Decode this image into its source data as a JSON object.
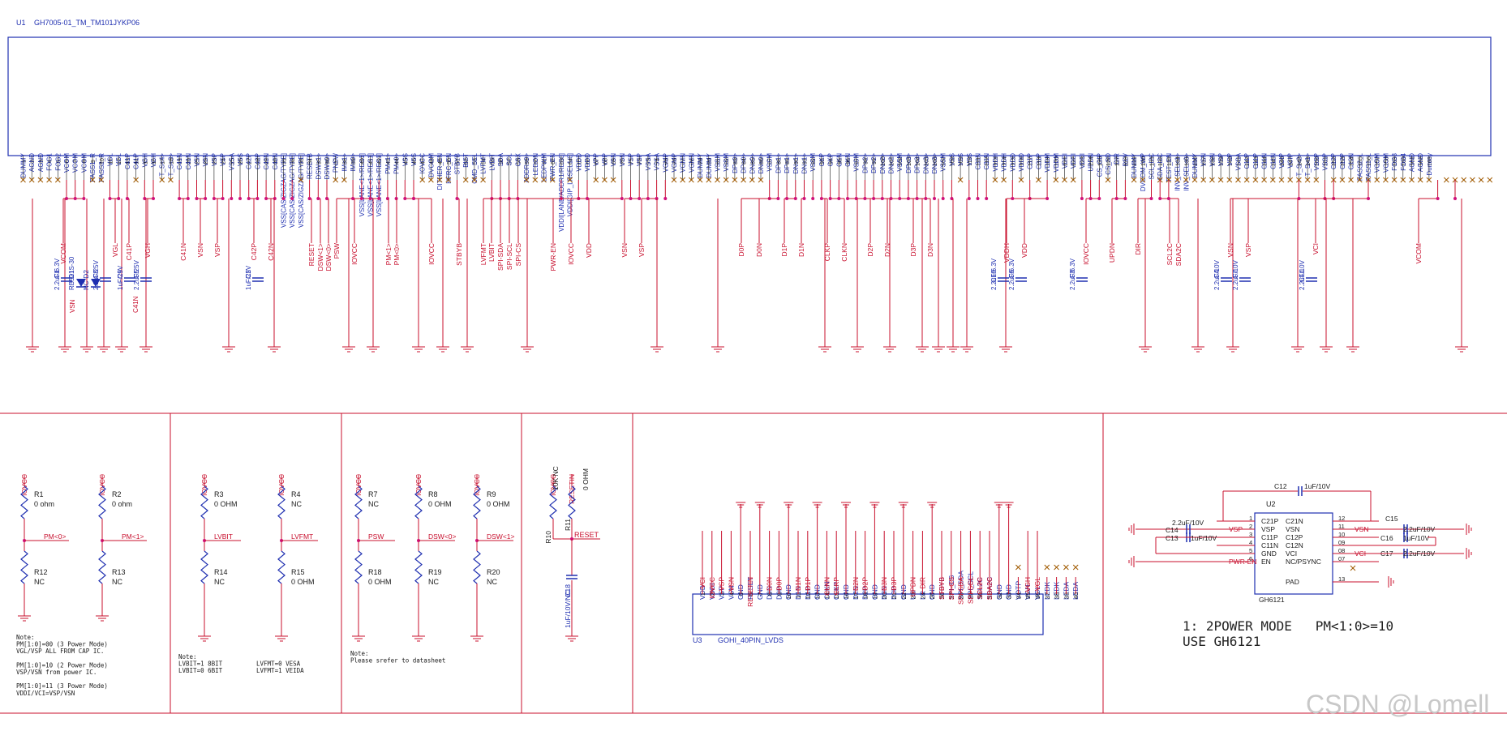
{
  "colors": {
    "wire": "#c8102e",
    "part": "#1f2fb0",
    "net": "#c8102e",
    "text": "#1a1a1a",
    "pin_x": "#a05a00",
    "watermark": "#c8c8c8",
    "grid": "#c8102e"
  },
  "u1": {
    "designator": "U1",
    "part": "GH7005-01_TM_TM101JYKP06",
    "pins": [
      "DUMMY",
      "AGND",
      "AGND",
      "FOG1",
      "FOG2",
      "VCOM",
      "VCOM",
      "VCOM",
      "PASS1_R",
      "PASS2_R",
      "VGL",
      "VGL",
      "C41P",
      "C41P",
      "VGH",
      "VGH",
      "T_S<4>",
      "T_S<3>",
      "C41N",
      "C41N",
      "VSN",
      "VSN",
      "VSP",
      "VSP",
      "VSSA",
      "VSS",
      "C42P",
      "C42P",
      "C42N",
      "C42N",
      "VSS[CAS/ZIGZAG/TYPE]",
      "VSS[CAS/ZIGZAG/TYPE]",
      "VSS[CAS/ZIGZAG/TYPE]",
      "RESETB",
      "DSW<1>",
      "DSW<0>",
      "PNSW",
      "IM<1>",
      "IM<0>",
      "VSS[LANE<1>/RES1]",
      "VSS[LANE<1>/RES1]",
      "VSS[LANE<1>/RES1]",
      "PM<1>",
      "PM<0>",
      "VSS",
      "VSS",
      "IOVCC",
      "DVCOM",
      "DITHER_EN",
      "HFRC_EN",
      "STBYB",
      "BIST",
      "CMD_SEL",
      "LVFMT",
      "LVBIT",
      "SDA",
      "SCL",
      "CSX",
      "ADDR<0>",
      "LEDON",
      "LEDPWM",
      "PWR_EN",
      "VDDI[LANE/ADDR1/RES0]",
      "VDDI[GIP_LRSEL1/0]",
      "VDDD",
      "VDDD",
      "VPP",
      "VPP",
      "VSN",
      "VSN",
      "VSP",
      "VSP",
      "VSSA",
      "VSSA",
      "VGMP",
      "VGMP",
      "VGMN",
      "VGMN",
      "DUMMY",
      "DUMMY",
      "VSSM",
      "VSSM",
      "DP<0>",
      "DP<0>",
      "DN<0>",
      "DN<0>",
      "VSSM",
      "DP<1>",
      "DP<1>",
      "DN<1>",
      "DN<1>",
      "VSSM",
      "CKP",
      "CKP",
      "CKN",
      "CKN",
      "VSSM",
      "DP<2>",
      "DP<2>",
      "DN<2>",
      "DN<2>",
      "VSSM",
      "DP<3>",
      "DP<3>",
      "DN<3>",
      "DN<3>",
      "VSSM",
      "VSS",
      "VSS",
      "VSS",
      "C31N",
      "C31N",
      "VDDH",
      "VDDH",
      "VDDD",
      "VDDD",
      "C31P",
      "C31P",
      "VDDM",
      "VDDM",
      "VDDI",
      "VDDI",
      "VDDI",
      "UPDN",
      "CS_GIP",
      "CS_SD",
      "DIR",
      "REV",
      "DUMMY",
      "DVCOM_WP",
      "SCL_I2C",
      "SDA_I2C",
      "TEST_EN",
      "INV_SEL<1>",
      "INV_SEL<0>",
      "DUMMY",
      "VSN",
      "VSN",
      "VSP",
      "VSP",
      "VSSA",
      "C11P",
      "C11P",
      "C11N",
      "C11N",
      "VCIP",
      "VCIP",
      "T_S<2>",
      "T_S<1>",
      "VSSP",
      "VSSP",
      "C12P",
      "C12P",
      "C12N",
      "PASS2_L",
      "PASS1_L",
      "VCOM",
      "VCOM",
      "FOG3",
      "FOG4",
      "AGND",
      "AGND",
      "Dummy"
    ],
    "nets": [
      "VCOM",
      "VGL",
      "C41P",
      "VGH",
      "C41N",
      "VSN",
      "VSP",
      "C42P",
      "C42N",
      "RESET",
      "DSW<1>",
      "DSW<0>",
      "PSW",
      "IOVCC",
      "PM<1>",
      "PM<0>",
      "IOVCC",
      "STBYB",
      "LVFMT",
      "LVBIT",
      "SPI-SDA",
      "SPI-SCL",
      "SPI-CS",
      "PWR-EN",
      "IOVCC",
      "VDD",
      "VSN",
      "VSP",
      "D0P",
      "D0N",
      "D1P",
      "D1N",
      "CLKP",
      "CLKN",
      "D2P",
      "D2N",
      "D3P",
      "D3N",
      "VDDH",
      "VDD",
      "IOVCC",
      "UPDN",
      "DIR",
      "SCL2C",
      "SDA2C",
      "VSN",
      "VSP",
      "VCI",
      "VCOM"
    ],
    "caps": [
      {
        "ref": "C1",
        "value": "2.2uF/6.3V",
        "net": "VSN"
      },
      {
        "ref": "D1",
        "value": "RB521S-30"
      },
      {
        "ref": "D2",
        "value": "NC"
      },
      {
        "ref": "C8",
        "value": "2.2uF/25V"
      },
      {
        "ref": "C9",
        "value": "1uF/25V",
        "net": "C41N"
      },
      {
        "ref": "C5",
        "value": "2.2uF/25V"
      },
      {
        "ref": "C2",
        "value": "1uF/25V"
      },
      {
        "ref": "C10",
        "value": "2.2uF/6.3V"
      },
      {
        "ref": "C6",
        "value": "2.2uF/6.3V"
      },
      {
        "ref": "C3",
        "value": "2.2uF/6.3V"
      },
      {
        "ref": "C4",
        "value": "2.2uF/10V"
      },
      {
        "ref": "C7",
        "value": "2.2uF/10V"
      },
      {
        "ref": "C11",
        "value": "2.2uF/10V"
      }
    ]
  },
  "resistors": {
    "b1": [
      {
        "ref": "R1",
        "value": "0 ohm",
        "top": "IOVCC",
        "mid": "PM<0>"
      },
      {
        "ref": "R2",
        "value": "0 ohm",
        "top": "IOVCC",
        "mid": "PM<1>"
      },
      {
        "ref": "R12",
        "value": "NC"
      },
      {
        "ref": "R13",
        "value": "NC"
      }
    ],
    "b2": [
      {
        "ref": "R3",
        "value": "0 OHM",
        "top": "IOVCC",
        "mid": "LVBIT"
      },
      {
        "ref": "R4",
        "value": "NC",
        "top": "IOVCC",
        "mid": "LVFMT"
      },
      {
        "ref": "R14",
        "value": "NC"
      },
      {
        "ref": "R15",
        "value": "0 OHM"
      }
    ],
    "b3": [
      {
        "ref": "R7",
        "value": "NC",
        "top": "IOVCC",
        "mid": "PSW"
      },
      {
        "ref": "R8",
        "value": "0 OHM",
        "top": "IOVCC",
        "mid": "DSW<0>"
      },
      {
        "ref": "R9",
        "value": "0 OHM",
        "top": "IOVCC",
        "mid": "DSW<1>"
      },
      {
        "ref": "R18",
        "value": "0 OHM"
      },
      {
        "ref": "R19",
        "value": "NC"
      },
      {
        "ref": "R20",
        "value": "NC"
      }
    ],
    "b4": {
      "r10": "R10",
      "r10_value": "10K NC",
      "r11": "R11",
      "r11_value": "0 OHM",
      "top1": "IOVCC",
      "top2": "RESETIN",
      "mid": "RESET",
      "cap_ref": "C18",
      "cap_value": "1uF/10V/NC"
    }
  },
  "notes": {
    "b1": [
      "Note:",
      "PM[1:0]=00 (3 Power Mode)",
      " VGL/VSP  ALL FROM CAP IC.",
      "",
      "PM[1:0]=10 (2 Power Mode)",
      "VSP/VSN  from power IC.",
      "",
      "PM[1:0]=11 (3 Power Mode)",
      "VDDI/VCI=VSP/VSN"
    ],
    "b2a": [
      "Note:",
      "LVBIT=1  8BIT",
      "LVBIT=0  6BIT"
    ],
    "b2b": [
      "LVFMT=0  VESA",
      "LVFMT=1  VEIDA"
    ],
    "b3": [
      "Note:",
      "Please srefer to  datasheet"
    ]
  },
  "u3": {
    "designator": "U3",
    "part": "GOHI_40PIN_LVDS",
    "pins": [
      "VDD",
      "VDDI",
      "VSP",
      "VSN",
      "GND",
      "RESET",
      "GND",
      "D0N",
      "D0P",
      "GND",
      "D1N",
      "D1P",
      "GND",
      "CLKN",
      "CLKP",
      "GND",
      "D2N",
      "D2P",
      "GND",
      "D3N",
      "D3P",
      "GND",
      "UD",
      "LR",
      "GND",
      "STBYB",
      "SPI_CS",
      "SPI_SDA",
      "SPI_SCL",
      "SCL2C",
      "SDA2C",
      "GND",
      "GND",
      "VOTP",
      "VGH",
      "VGL",
      "LEDK",
      "LEDK",
      "LEDA",
      "LEDA"
    ],
    "nets": [
      "VCI",
      "IOVCC",
      "VSP",
      "VSN",
      "",
      "RESETIN",
      "",
      "D0N",
      "D0P",
      "",
      "D1N",
      "D1P",
      "",
      "CLKN",
      "CLKP",
      "",
      "D2N",
      "D2P",
      "",
      "D3N",
      "D3P",
      "",
      "UPDN",
      "DIR",
      "",
      "STBYB",
      "SPI-CS",
      "SPI-SDA",
      "SPI-SCL",
      "SCL2C",
      "SDA2C",
      "",
      "",
      "",
      "VGH",
      "VGL",
      "",
      "",
      "",
      ""
    ]
  },
  "u2": {
    "designator": "U2",
    "part": "GH6121",
    "left_pins": [
      {
        "num": "1",
        "name": "C21P",
        "net": "",
        "ext": "2.2uF/10V"
      },
      {
        "num": "2",
        "name": "VSP",
        "net": "VSP",
        "ext": "C14"
      },
      {
        "num": "3",
        "name": "C11P",
        "net": "",
        "ext": "C13"
      },
      {
        "num": "4",
        "name": "C11N",
        "net": "",
        "ext": ""
      },
      {
        "num": "5",
        "name": "GND",
        "net": "",
        "ext": ""
      },
      {
        "num": "6",
        "name": "EN",
        "net": "PWR-EN",
        "ext": ""
      }
    ],
    "right_pins": [
      {
        "num": "12",
        "name": "C21N"
      },
      {
        "num": "11",
        "name": "VSN",
        "net": "VSN"
      },
      {
        "num": "10",
        "name": "C12P"
      },
      {
        "num": "09",
        "name": "C12N"
      },
      {
        "num": "08",
        "name": "VCI",
        "net": "VCI"
      },
      {
        "num": "07",
        "name": "NC/PSYNC"
      },
      {
        "num": "13",
        "name": "PAD"
      }
    ],
    "caps": {
      "c12": "C12",
      "c12_value": "1uF/10V",
      "c13_value": "1uF/10V",
      "c15": "C15",
      "c15_value": "2.2uF/10V",
      "c16": "C16",
      "c16_value": "1uF/10V",
      "c17": "C17",
      "c17_value": "2.2uF/10V"
    }
  },
  "mode_note": {
    "line1": "1: 2POWER MODE   PM<1:0>=10",
    "line2": "USE GH6121"
  },
  "watermark": "CSDN @Lomell"
}
